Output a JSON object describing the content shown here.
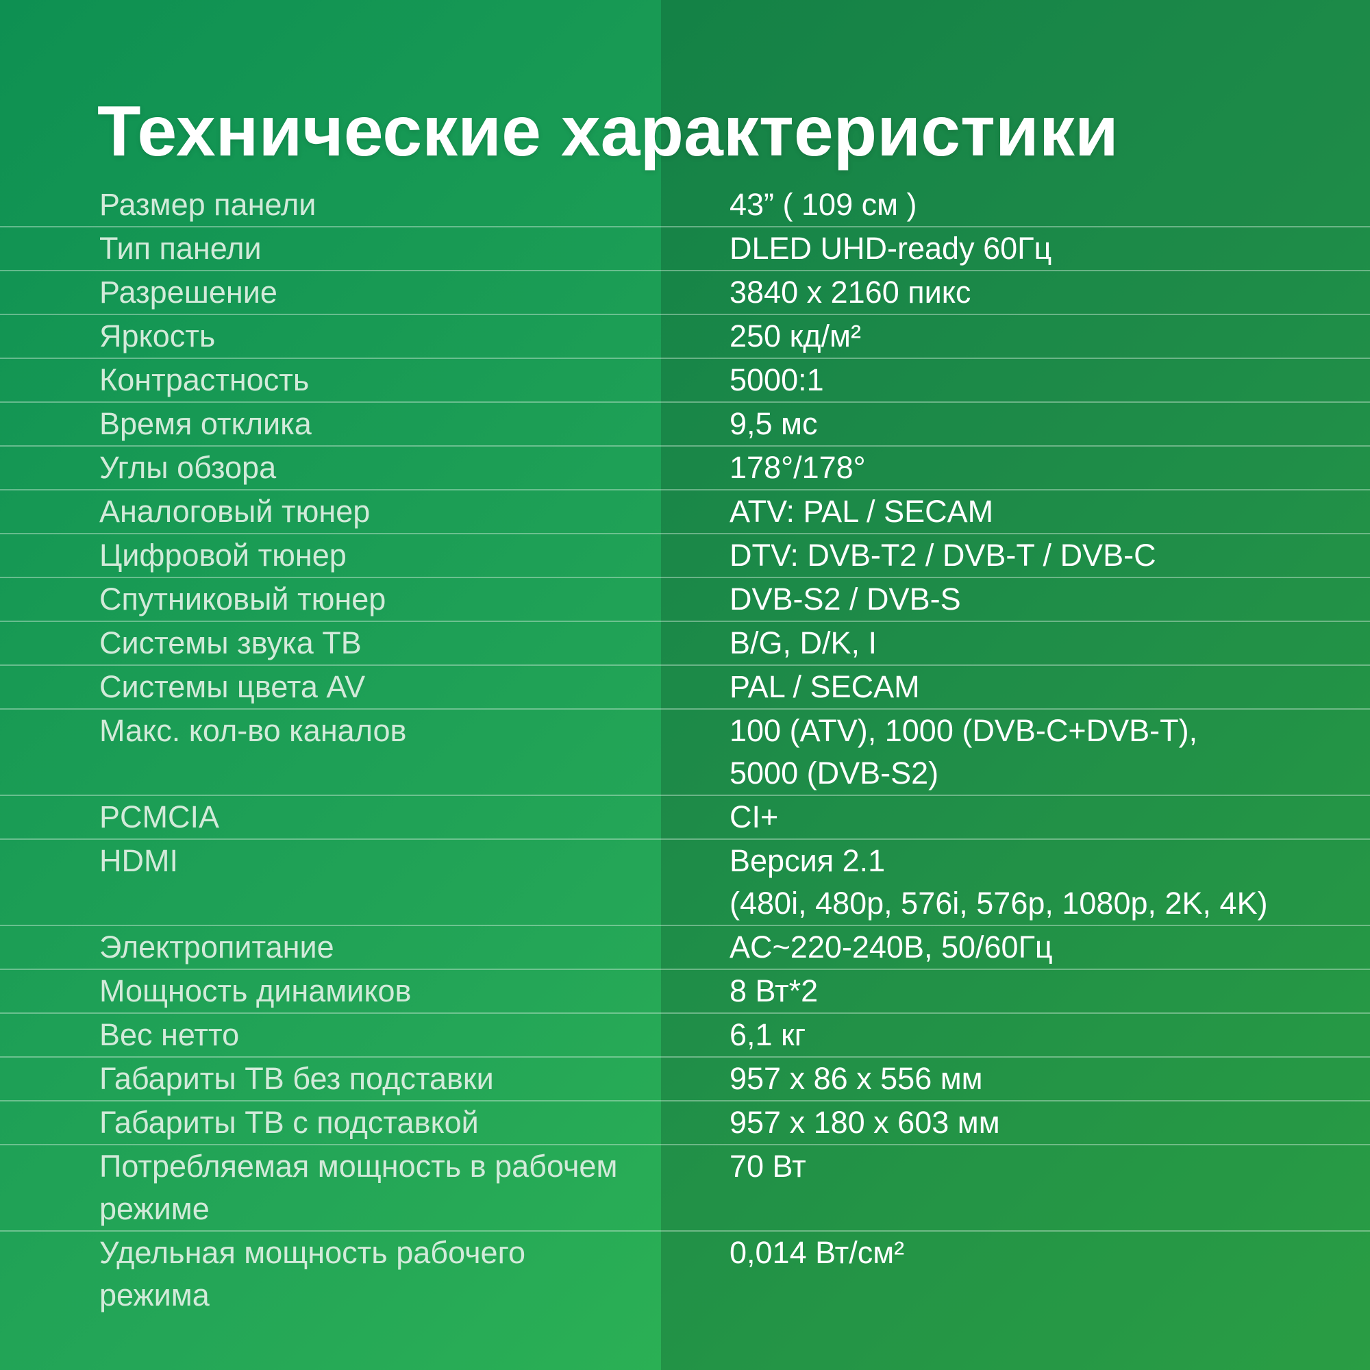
{
  "page": {
    "title": "Технические характеристики"
  },
  "table": {
    "rows": [
      {
        "label": "Размер панели",
        "value": "43” ( 109 см )"
      },
      {
        "label": "Тип панели",
        "value": "DLED UHD-ready 60Гц"
      },
      {
        "label": "Разрешение",
        "value": "3840 x 2160 пикс"
      },
      {
        "label": "Яркость",
        "value": "250 кд/м²"
      },
      {
        "label": "Контрастность",
        "value": "5000:1"
      },
      {
        "label": "Время отклика",
        "value": "9,5 мс"
      },
      {
        "label": "Углы обзора",
        "value": "178°/178°"
      },
      {
        "label": "Аналоговый тюнер",
        "value": "ATV: PAL / SECAM"
      },
      {
        "label": "Цифровой тюнер",
        "value": "DTV: DVB-T2 / DVB-T / DVB-C"
      },
      {
        "label": "Спутниковый тюнер",
        "value": "DVB-S2 / DVB-S"
      },
      {
        "label": "Системы звука ТВ",
        "value": "B/G, D/K, I"
      },
      {
        "label": "Системы цвета AV",
        "value": "PAL / SECAM"
      },
      {
        "label": "Макс. кол-во каналов",
        "value": "100 (ATV), 1000 (DVB-C+DVB-T),\n5000 (DVB-S2)"
      },
      {
        "label": "PCMCIA",
        "value": "CI+"
      },
      {
        "label": "HDMI",
        "value": "Версия 2.1\n(480i, 480p, 576i, 576p, 1080p, 2K, 4K)"
      },
      {
        "label": "Электропитание",
        "value": "AC~220-240В, 50/60Гц"
      },
      {
        "label": "Мощность динамиков",
        "value": "8 Вт*2"
      },
      {
        "label": "Вес нетто",
        "value": "6,1 кг"
      },
      {
        "label": "Габариты ТВ без подставки",
        "value": "957 x 86 x 556 мм"
      },
      {
        "label": "Габариты ТВ с подставкой",
        "value": "957 x 180 x 603 мм"
      },
      {
        "label": "Потребляемая мощность в рабочем\nрежиме",
        "value": "70 Вт"
      },
      {
        "label": "Удельная мощность рабочего\nрежима",
        "value": "0,014 Вт/см²"
      }
    ]
  },
  "colors": {
    "bg-gradient-top": "#0e9052",
    "bg-gradient-bottom": "#33bd51",
    "right-overlay": "rgba(10,45,25,0.22)",
    "separator-color": "rgba(224,242,230,0.40)",
    "title-color": "#ffffff",
    "label-color": "#d2ead9",
    "value-color": "#ffffff"
  }
}
